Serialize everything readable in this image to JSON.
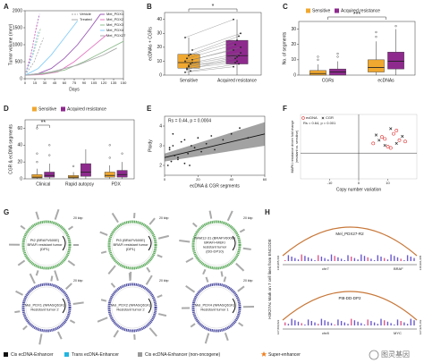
{
  "panel_labels": [
    "A",
    "B",
    "C",
    "D",
    "E",
    "F",
    "G",
    "H"
  ],
  "chart_data": [
    {
      "type": "line",
      "ylabel": "Tumor volume (mm³)",
      "xlabel": "Days",
      "xlim": [
        0,
        150
      ],
      "ylim": [
        0,
        2000
      ],
      "xticks": [
        0,
        15,
        30,
        45,
        60,
        75,
        90,
        105,
        120,
        135,
        150
      ],
      "yticks": [
        0,
        500,
        1000,
        1500,
        2000
      ],
      "style_legend": [
        "Vehicle",
        "Treated"
      ],
      "series": [
        {
          "name": "Mel_PDX1",
          "color": "#9b59b6",
          "x": [
            0,
            20,
            40,
            60,
            80,
            100,
            115
          ],
          "values": [
            100,
            150,
            300,
            600,
            1000,
            1500,
            1900
          ],
          "vehicle_x": [
            0,
            8,
            15,
            22
          ],
          "vehicle_values": [
            100,
            600,
            1300,
            1900
          ]
        },
        {
          "name": "Mel_PDX2",
          "color": "#e377c2",
          "x": [
            0,
            25,
            50,
            75,
            100,
            125
          ],
          "values": [
            100,
            120,
            200,
            500,
            900,
            1300
          ],
          "vehicle_x": [
            0,
            10,
            18
          ],
          "vehicle_values": [
            100,
            800,
            1600
          ]
        },
        {
          "name": "Mel_PDX3",
          "color": "#8fbc8f",
          "x": [
            0,
            30,
            60,
            90,
            120,
            150
          ],
          "values": [
            100,
            150,
            250,
            500,
            800,
            1100
          ],
          "vehicle_x": [
            0,
            12,
            24
          ],
          "vehicle_values": [
            100,
            700,
            1500
          ]
        },
        {
          "name": "Mel_PDX4",
          "color": "#87cefa",
          "x": [
            0,
            20,
            40,
            60,
            80
          ],
          "values": [
            100,
            300,
            700,
            1200,
            1700
          ],
          "vehicle_x": [
            0,
            10,
            20
          ],
          "vehicle_values": [
            100,
            600,
            1400
          ]
        },
        {
          "name": "Mel_PDX27",
          "color": "#aaaaaa",
          "x": [
            0,
            40,
            80,
            120,
            140
          ],
          "values": [
            100,
            200,
            400,
            700,
            900
          ],
          "vehicle_x": [
            0,
            14,
            28
          ],
          "vehicle_values": [
            100,
            500,
            1200
          ]
        }
      ]
    },
    {
      "type": "paired-box",
      "ylabel": "ecDNAs + CGRs",
      "categories": [
        "Sensitive",
        "Acquired resistance"
      ],
      "ylim": [
        0,
        45
      ],
      "yticks": [
        0,
        10,
        20,
        30,
        40
      ],
      "colors": [
        "#f0a830",
        "#8e2a8e"
      ],
      "significance": "*",
      "boxes": [
        [
          0,
          5,
          9,
          15,
          27
        ],
        [
          0,
          8,
          14,
          25,
          40
        ]
      ],
      "points": [
        [
          2,
          5,
          6,
          8,
          9,
          10,
          12,
          14,
          15,
          18,
          27,
          4,
          7,
          3,
          11
        ],
        [
          6,
          9,
          13,
          14,
          16,
          18,
          22,
          25,
          28,
          30,
          40,
          12,
          10,
          8,
          20
        ]
      ]
    },
    {
      "type": "grouped-box",
      "ylabel": "No. of segments",
      "categories": [
        "CGRs",
        "ecDNAs"
      ],
      "ylim": [
        0,
        35
      ],
      "yticks": [
        0,
        10,
        20,
        30
      ],
      "significance": "***",
      "series": [
        {
          "name": "Sensitive",
          "color": "#f0a830",
          "boxes": [
            [
              0,
              0,
              1,
              3,
              7
            ],
            [
              0,
              2,
              5,
              10,
              22
            ]
          ],
          "outliers": [
            [
              10,
              12
            ],
            [
              25,
              28
            ]
          ]
        },
        {
          "name": "Acquired resistance",
          "color": "#8e2a8e",
          "boxes": [
            [
              0,
              0,
              2,
              4,
              9
            ],
            [
              0,
              4,
              9,
              15,
              30
            ]
          ],
          "outliers": [
            [
              12,
              14
            ],
            [
              32
            ]
          ]
        }
      ]
    },
    {
      "type": "grouped-box",
      "ylabel": "CGR & ecDNA segments",
      "categories": [
        "Clinical",
        "Rapid autopsy",
        "PDX"
      ],
      "ylim": [
        0,
        70
      ],
      "yticks": [
        0,
        20,
        40,
        60
      ],
      "significance": "**",
      "series": [
        {
          "name": "Sensitive",
          "color": "#f0a830",
          "boxes": [
            [
              0,
              1,
              2,
              5,
              12
            ],
            [
              0,
              1,
              2,
              4,
              8
            ],
            [
              0,
              2,
              4,
              8,
              16
            ]
          ],
          "outliers": [
            [
              20,
              30,
              60
            ],
            [
              15
            ],
            [
              25,
              40
            ]
          ]
        },
        {
          "name": "Acquired resistance",
          "color": "#8e2a8e",
          "boxes": [
            [
              0,
              2,
              4,
              8,
              18
            ],
            [
              0,
              3,
              8,
              18,
              35
            ],
            [
              0,
              2,
              5,
              10,
              20
            ]
          ],
          "outliers": [
            [
              28,
              40
            ],
            [],
            [
              30
            ]
          ]
        }
      ]
    },
    {
      "type": "scatter-fit",
      "xlabel": "ecDNA & CGR segments",
      "ylabel": "Ploidy",
      "annotation": "Rs = 0.44, p = 0.0004",
      "xlim": [
        0,
        60
      ],
      "ylim": [
        1.5,
        4.5
      ],
      "xticks": [
        0,
        20,
        40,
        60
      ],
      "yticks": [
        2,
        3,
        4
      ],
      "color": "#222222",
      "band_color": "#555555",
      "x": [
        2,
        3,
        4,
        5,
        6,
        8,
        10,
        12,
        14,
        16,
        18,
        20,
        22,
        25,
        28,
        30,
        35,
        40,
        45,
        50,
        5,
        8,
        3,
        15,
        12
      ],
      "values": [
        2.0,
        2.8,
        2.2,
        3.0,
        2.5,
        2.4,
        3.2,
        2.1,
        2.6,
        3.0,
        2.9,
        3.4,
        2.7,
        3.1,
        3.5,
        2.8,
        3.3,
        3.6,
        3.9,
        3.4,
        3.6,
        2.3,
        2.9,
        2.0,
        3.3
      ],
      "fit": {
        "x": [
          0,
          60
        ],
        "values": [
          2.4,
          3.6
        ],
        "lower": [
          2.2,
          3.0
        ],
        "upper": [
          2.6,
          4.2
        ]
      }
    },
    {
      "type": "scatter",
      "xlabel": "Copy number variation",
      "ylabel": [
        "MAPKi resistance driven fold change",
        "(resistant vs. sensitive)"
      ],
      "annotation": "Rs = 0.64, p = 0.001",
      "xlim": [
        -20,
        20
      ],
      "ylim": [
        -4,
        6
      ],
      "xticks": [
        -10,
        0,
        10
      ],
      "series": [
        {
          "name": "ecDNA",
          "color": "#e03030",
          "marker": "circle",
          "x": [
            5,
            8,
            10,
            12,
            14,
            16,
            11,
            9,
            13
          ],
          "values": [
            1.5,
            2.5,
            1,
            3,
            2,
            1.8,
            0.8,
            2.2,
            3.5
          ]
        },
        {
          "name": "CGR",
          "color": "#111111",
          "marker": "x",
          "x": [
            6,
            9,
            11,
            15,
            13,
            7
          ],
          "values": [
            2.8,
            1.2,
            3.8,
            2.6,
            1.5,
            2
          ]
        }
      ]
    }
  ],
  "panel_g": {
    "scale": "20 kbp",
    "plasmids": [
      {
        "lines": [
          "Pt2 (BRAFV600E)",
          "BRAFi resistant tumor",
          "(DP1)"
        ],
        "ring_color": "#5aa85a"
      },
      {
        "lines": [
          "Pt3 (BRAFV600E)",
          "BRAFi resistant tumor",
          "(DP1)"
        ],
        "ring_color": "#5aa85a"
      },
      {
        "lines": [
          "RAM12-31 (BRAFV600E)",
          "BRAFi+MEKi",
          "resistant tumor",
          "(DD-DP10)"
        ],
        "ring_color": "#5aa85a"
      },
      {
        "lines": [
          "Mel_PDX1 (NRASQ61K)",
          "Resistant tumor 2"
        ],
        "ring_color": "#4a4aa0"
      },
      {
        "lines": [
          "Mel_PDX2 (NRASQ61K)",
          "Resistant tumor 2"
        ],
        "ring_color": "#4a4aa0"
      },
      {
        "lines": [
          "Mel_PDX4 (NRASQ61K)",
          "Resistant tumor 1"
        ],
        "ring_color": "#4a4aa0"
      }
    ],
    "legend": [
      {
        "label": "Cis ecDNA-Enhancer",
        "color": "#111111"
      },
      {
        "label": "Trans ecDNA-Enhancer",
        "color": "#22b5e0"
      },
      {
        "label": "Cis ecDNA-Enhancer (non-oncogene)",
        "color": "#999999"
      },
      {
        "label": "Super-enhancer",
        "color": "#f08020"
      }
    ]
  },
  "panel_h": {
    "axis_label": "H3K27Ac Mark on 7 cell lines from ENCODE",
    "arc_color": "#c8783a",
    "tracks": [
      {
        "title": "Mel_PDX27-R2",
        "chrom": "chr7",
        "gene": "BRAF",
        "start": "138,985,604",
        "end": "140,991,965"
      },
      {
        "title": "Pt8-DD-DP2",
        "chrom": "chr8",
        "gene": "MYC",
        "start": "127,800,822",
        "end": "127,925,163"
      }
    ]
  },
  "watermark": "图灵基因"
}
